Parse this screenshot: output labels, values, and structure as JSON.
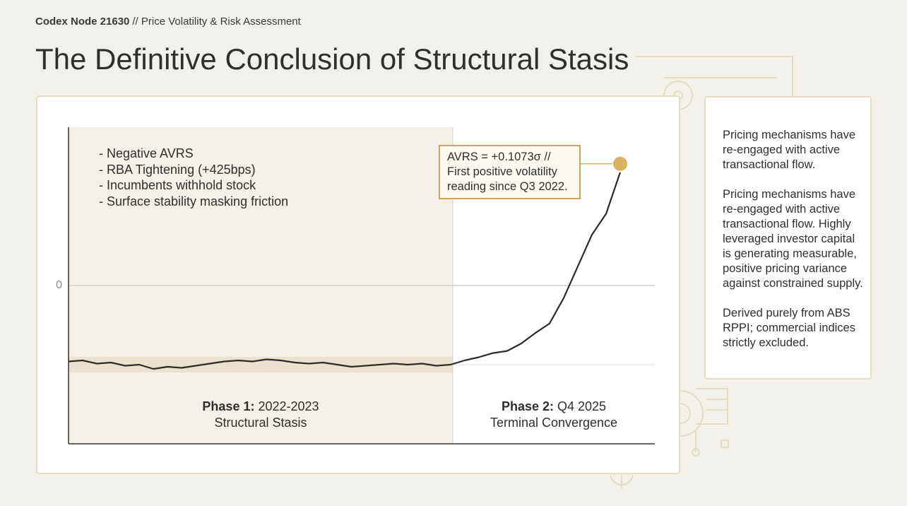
{
  "header": {
    "node": "Codex Node 21630",
    "section": "// Price Volatility & Risk Assessment",
    "title": "The Definitive Conclusion of Structural Stasis"
  },
  "chart_data": {
    "type": "line",
    "series": [
      {
        "color": "#2b2b2b",
        "values": [
          -0.072,
          -0.071,
          -0.074,
          -0.073,
          -0.076,
          -0.075,
          -0.079,
          -0.077,
          -0.078,
          -0.076,
          -0.074,
          -0.072,
          -0.071,
          -0.072,
          -0.07,
          -0.071,
          -0.073,
          -0.074,
          -0.073,
          -0.075,
          -0.077,
          -0.076,
          -0.075,
          -0.074,
          -0.075,
          -0.074,
          -0.076,
          -0.075,
          -0.071,
          -0.068,
          -0.064,
          -0.062,
          -0.055,
          -0.045,
          -0.036,
          -0.012,
          0.018,
          0.048,
          0.068,
          0.1073
        ]
      }
    ],
    "ylim": [
      -0.15,
      0.15
    ],
    "yticks": [
      0
    ],
    "grid": true,
    "highlight_color": "#d9b463",
    "notes": [
      "- Negative AVRS",
      "- RBA Tightening (+425bps)",
      "- Incumbents withhold stock",
      "- Surface stability masking friction"
    ],
    "annotation": "AVRS = +0.1073σ // First positive volatility reading since Q3 2022.",
    "phases": [
      {
        "label": "Phase 1:",
        "period": "2022-2023",
        "name": "Structural Stasis"
      },
      {
        "label": "Phase 2:",
        "period": "Q4 2025",
        "name": "Terminal Convergence"
      }
    ]
  },
  "sidebar": {
    "paragraphs": [
      "Pricing mechanisms have re-engaged with active transactional flow.",
      "Pricing mechanisms have re-engaged with active transactional flow. Highly leveraged investor capital is generating measurable, positive pricing variance against constrained supply.",
      "Derived purely from ABS RPPI; commercial indices strictly excluded."
    ]
  }
}
